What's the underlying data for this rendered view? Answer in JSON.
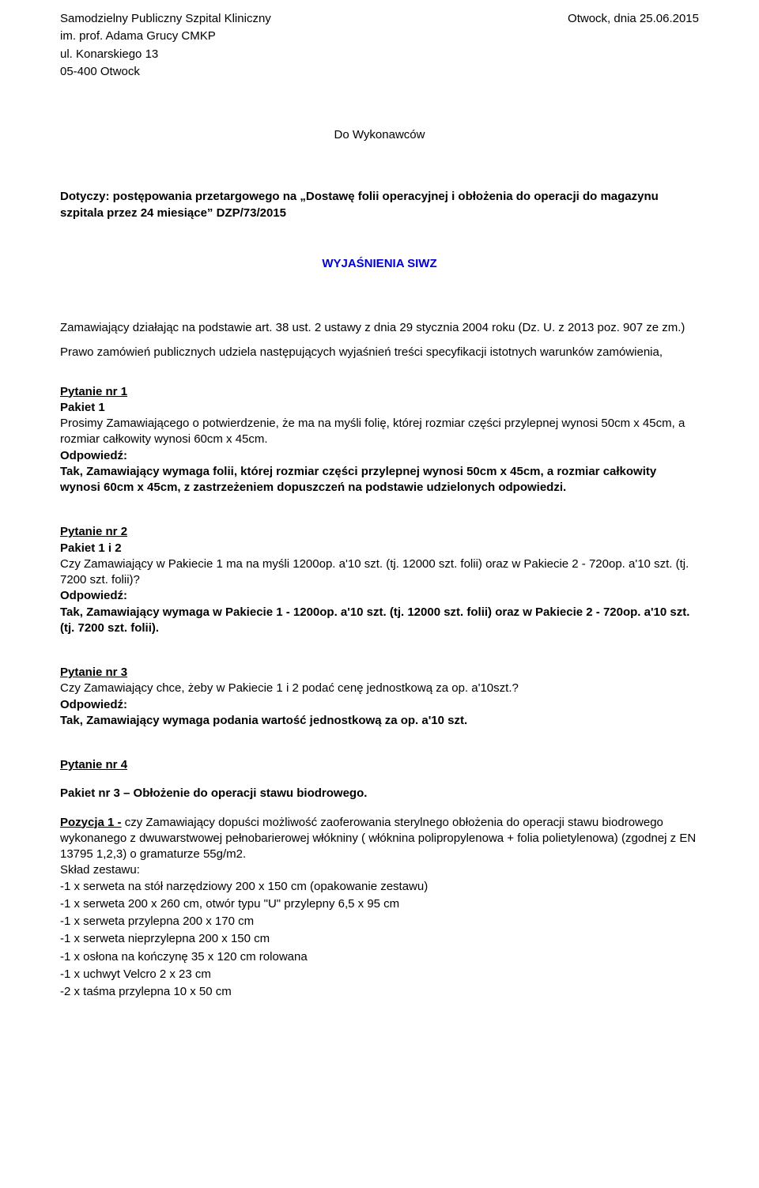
{
  "header": {
    "org_line1": "Samodzielny Publiczny Szpital Kliniczny",
    "org_line2": "im. prof. Adama Grucy CMKP",
    "org_line3": "ul. Konarskiego 13",
    "org_line4": "05-400 Otwock",
    "place_date": "Otwock, dnia 25.06.2015"
  },
  "recipient": "Do Wykonawców",
  "subject": {
    "prefix": "Dotyczy: postępowania przetargowego na „Dostawę folii operacyjnej i obłożenia do operacji do magazynu szpitala przez 24 miesiące” DZP/73/2015"
  },
  "siwz_heading": "WYJAŚNIENIA SIWZ",
  "intro": {
    "p1": "Zamawiający działając na podstawie art. 38 ust. 2 ustawy z dnia 29 stycznia 2004 roku (Dz. U. z 2013 poz. 907 ze zm.) Prawo zamówień publicznych udziela następujących wyjaśnień treści specyfikacji istotnych warunków zamówienia,"
  },
  "q1": {
    "title": "Pytanie nr 1",
    "sub": "Pakiet 1",
    "body": "Prosimy Zamawiającego o potwierdzenie, że ma na myśli folię, której rozmiar części przylepnej wynosi 50cm x 45cm, a rozmiar całkowity wynosi 60cm x 45cm.",
    "ans_label": "Odpowiedź:",
    "ans": "Tak, Zamawiający wymaga folii, której rozmiar części przylepnej wynosi 50cm x 45cm, a rozmiar całkowity wynosi 60cm x 45cm, z zastrzeżeniem dopuszczeń na podstawie udzielonych odpowiedzi."
  },
  "q2": {
    "title": "Pytanie nr 2",
    "sub": "Pakiet 1 i 2",
    "body": "Czy Zamawiający w Pakiecie 1 ma na myśli 1200op. a'10 szt. (tj. 12000 szt. folii) oraz w Pakiecie 2 - 720op. a'10 szt. (tj. 7200 szt. folii)?",
    "ans_label": "Odpowiedź:",
    "ans": "Tak, Zamawiający wymaga w Pakiecie 1 - 1200op. a'10 szt. (tj. 12000 szt. folii) oraz w Pakiecie 2 - 720op. a'10 szt. (tj. 7200 szt. folii)."
  },
  "q3": {
    "title": "Pytanie nr 3",
    "body": "Czy Zamawiający chce, żeby w Pakiecie 1 i 2 podać cenę jednostkową za op. a'10szt.?",
    "ans_label": "Odpowiedź:",
    "ans": "Tak, Zamawiający wymaga podania wartość jednostkową za op. a'10 szt."
  },
  "q4": {
    "title": "Pytanie nr 4",
    "sub": "Pakiet nr 3 – Obłożenie do operacji stawu biodrowego.",
    "pos_label": "Pozycja 1 -",
    "pos_body": " czy Zamawiający dopuści możliwość zaoferowania sterylnego obłożenia do operacji stawu biodrowego wykonanego z dwuwarstwowej pełnobarierowej włókniny ( włóknina polipropylenowa + folia polietylenowa) (zgodnej z EN 13795 1,2,3) o gramaturze 55g/m2.",
    "list_head": "Skład zestawu:",
    "items": [
      "-1 x serweta na stół narzędziowy 200 x 150 cm (opakowanie zestawu)",
      "-1 x serweta 200 x 260 cm, otwór typu \"U\" przylepny 6,5 x 95 cm",
      "-1 x serweta przylepna 200 x 170 cm",
      "-1 x serweta nieprzylepna 200 x 150 cm",
      "-1 x osłona na kończynę 35 x 120 cm rolowana",
      "-1 x uchwyt Velcro 2 x 23 cm",
      "-2 x taśma przylepna 10 x 50 cm"
    ]
  }
}
